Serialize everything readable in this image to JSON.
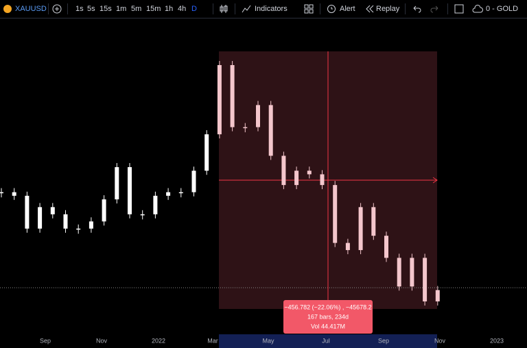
{
  "toolbar": {
    "symbol": "XAUUSD",
    "intervals": [
      "1s",
      "5s",
      "15s",
      "1m",
      "5m",
      "15m",
      "1h",
      "4h",
      "D"
    ],
    "indicators": "Indicators",
    "alert": "Alert",
    "replay": "Replay",
    "account": "0 - GOLD"
  },
  "chart": {
    "x_labels": [
      "Sep",
      "Nov",
      "2022",
      "Mar",
      "May",
      "Jul",
      "Sep",
      "Nov",
      "2023"
    ],
    "closes": [
      1833,
      1827,
      1772,
      1808,
      1796,
      1772,
      1772,
      1784,
      1821,
      1875,
      1796,
      1796,
      1827,
      1833,
      1833,
      1869,
      1930,
      2046,
      1942,
      1942,
      1979,
      1894,
      1845,
      1869,
      1863,
      1845,
      1748,
      1736,
      1808,
      1760,
      1723,
      1675,
      1723,
      1650,
      1669
    ]
  },
  "measure": {
    "line1": "−456.782 (−22.06%) , −45678.2",
    "line2": "167 bars, 234d",
    "line3": "Vol 44.417M"
  }
}
